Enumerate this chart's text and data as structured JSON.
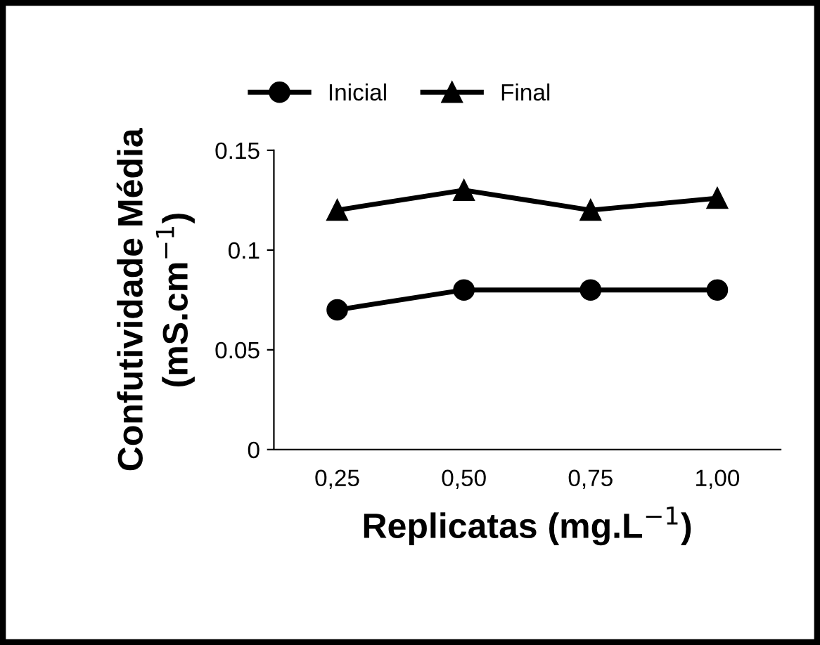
{
  "chart_data": {
    "type": "line",
    "xlabel": "Replicatas (mg.L$^{−1}$)",
    "ylabel": "Confutividade Média\n(mS.cm$^{−1}$)",
    "categories": [
      "0,25",
      "0,50",
      "0,75",
      "1,00"
    ],
    "series": [
      {
        "name": "Inicial",
        "color": "#000000",
        "marker": "circle",
        "values": [
          0.07,
          0.08,
          0.08,
          0.08
        ]
      },
      {
        "name": "Final",
        "color": "#000000",
        "marker": "triangle",
        "values": [
          0.12,
          0.13,
          0.12,
          0.126
        ]
      }
    ],
    "ylim": [
      0,
      0.15
    ],
    "yticks": [
      0,
      0.05,
      {
        "value": 0.1,
        "label": "0.1"
      },
      0.15
    ],
    "grid": false,
    "legend": "top",
    "line_style": "solid"
  }
}
